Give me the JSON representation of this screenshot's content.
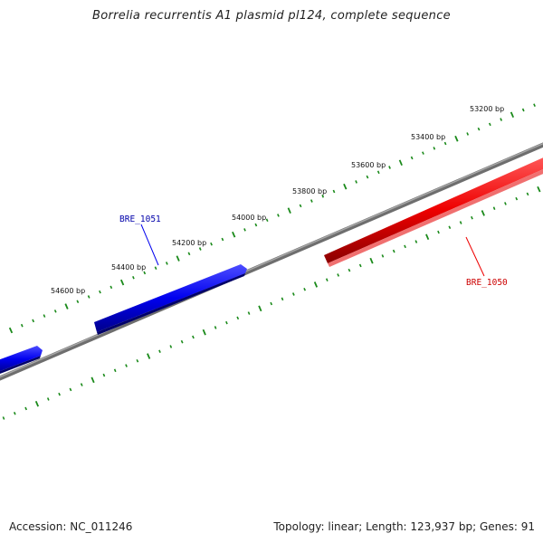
{
  "title": "Borrelia recurrentis A1 plasmid pl124, complete sequence",
  "footer": {
    "accession": "Accession: NC_011246",
    "summary": "Topology: linear; Length: 123,937 bp; Genes: 91"
  },
  "scale_labels": [
    {
      "text": "53200 bp"
    },
    {
      "text": "53400 bp"
    },
    {
      "text": "53600 bp"
    },
    {
      "text": "53800 bp"
    },
    {
      "text": "54000 bp"
    },
    {
      "text": "54200 bp"
    },
    {
      "text": "54400 bp"
    },
    {
      "text": "54600 bp"
    }
  ],
  "genes": [
    {
      "name": "BRE_1051",
      "strand": "reverse",
      "color": "#0000ee"
    },
    {
      "name": "BRE_1050",
      "strand": "forward",
      "color": "#ee0000"
    }
  ],
  "colors": {
    "backbone": "#808080",
    "ticks": "#1a8a1a",
    "forward_gene": "#ee0000",
    "reverse_gene": "#0000ee"
  }
}
